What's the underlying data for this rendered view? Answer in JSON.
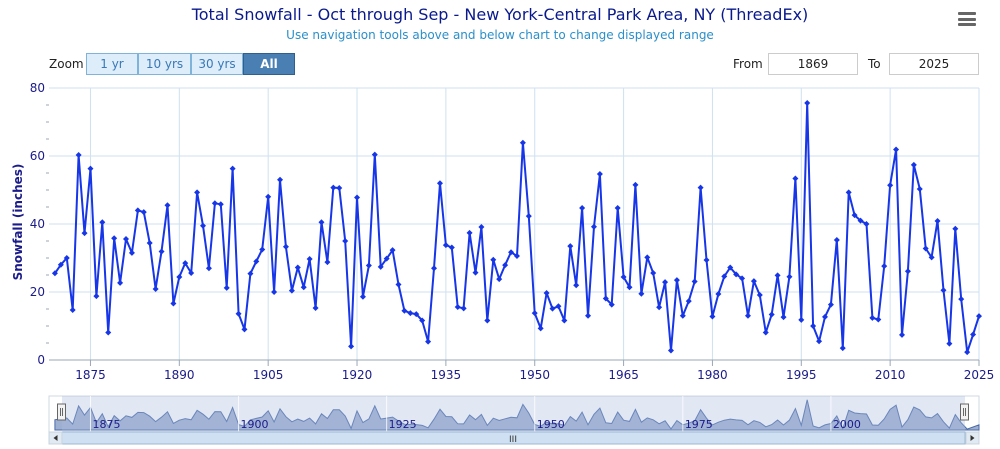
{
  "header": {
    "title": "Total Snowfall - Oct through Sep - New York-Central Park Area, NY (ThreadEx)",
    "subtitle": "Use navigation tools above and below chart to change displayed range",
    "menu_icon": "hamburger-menu-icon"
  },
  "zoom": {
    "label": "Zoom",
    "buttons": [
      "1 yr",
      "10 yrs",
      "30 yrs",
      "All"
    ],
    "active": "All"
  },
  "range": {
    "from_label": "From",
    "from_value": "1869",
    "to_label": "To",
    "to_value": "2025"
  },
  "navigator": {
    "ticks": [
      "1875",
      "1900",
      "1925",
      "1950",
      "1975",
      "2000"
    ],
    "scroll_grip": "III"
  },
  "chart_data": {
    "type": "line",
    "title": "Total Snowfall - Oct through Sep - New York-Central Park Area, NY (ThreadEx)",
    "subtitle": "Use navigation tools above and below chart to change displayed range",
    "xlabel": "",
    "ylabel": "Snowfall (inches)",
    "xlim": [
      1868,
      2025
    ],
    "ylim": [
      0,
      80
    ],
    "x_ticks": [
      1875,
      1890,
      1905,
      1920,
      1935,
      1950,
      1965,
      1980,
      1995,
      2010,
      2025
    ],
    "y_ticks": [
      0,
      20,
      40,
      60,
      80
    ],
    "grid": true,
    "color": "#1736e8",
    "x": [
      1869,
      1870,
      1871,
      1872,
      1873,
      1874,
      1875,
      1876,
      1877,
      1878,
      1879,
      1880,
      1881,
      1882,
      1883,
      1884,
      1885,
      1886,
      1887,
      1888,
      1889,
      1890,
      1891,
      1892,
      1893,
      1894,
      1895,
      1896,
      1897,
      1898,
      1899,
      1900,
      1901,
      1902,
      1903,
      1904,
      1905,
      1906,
      1907,
      1908,
      1909,
      1910,
      1911,
      1912,
      1913,
      1914,
      1915,
      1916,
      1917,
      1918,
      1919,
      1920,
      1921,
      1922,
      1923,
      1924,
      1925,
      1926,
      1927,
      1928,
      1929,
      1930,
      1931,
      1932,
      1933,
      1934,
      1935,
      1936,
      1937,
      1938,
      1939,
      1940,
      1941,
      1942,
      1943,
      1944,
      1945,
      1946,
      1947,
      1948,
      1949,
      1950,
      1951,
      1952,
      1953,
      1954,
      1955,
      1956,
      1957,
      1958,
      1959,
      1960,
      1961,
      1962,
      1963,
      1964,
      1965,
      1966,
      1967,
      1968,
      1969,
      1970,
      1971,
      1972,
      1973,
      1974,
      1975,
      1976,
      1977,
      1978,
      1979,
      1980,
      1981,
      1982,
      1983,
      1984,
      1985,
      1986,
      1987,
      1988,
      1989,
      1990,
      1991,
      1992,
      1993,
      1994,
      1995,
      1996,
      1997,
      1998,
      1999,
      2000,
      2001,
      2002,
      2003,
      2004,
      2005,
      2006,
      2007,
      2008,
      2009,
      2010,
      2011,
      2012,
      2013,
      2014,
      2015,
      2016,
      2017,
      2018,
      2019,
      2020,
      2021,
      2022,
      2023,
      2024,
      2025
    ],
    "values": [
      25.5,
      28,
      30,
      14.7,
      60.3,
      37.3,
      56.3,
      18.8,
      40.5,
      8.1,
      35.8,
      22.7,
      35.6,
      31.5,
      44,
      43.5,
      34.4,
      20.9,
      31.9,
      45.5,
      16.6,
      24.4,
      28.5,
      25.6,
      49.3,
      39.5,
      27,
      46.1,
      45.8,
      21.2,
      56.3,
      13.6,
      9,
      25.4,
      29,
      32.5,
      48,
      20,
      53,
      33.3,
      20.4,
      27.2,
      21.4,
      29.7,
      15.3,
      40.5,
      28.8,
      50.7,
      50.6,
      35,
      4,
      47.8,
      18.6,
      27.8,
      60.4,
      27.4,
      29.8,
      32.3,
      22.2,
      14.5,
      13.8,
      13.5,
      11.6,
      5.4,
      27,
      52,
      33.8,
      33.1,
      15.6,
      15.2,
      37.4,
      25.7,
      39.1,
      11.6,
      29.5,
      23.8,
      27.9,
      31.7,
      30.6,
      63.9,
      42.3,
      13.8,
      9.3,
      19.7,
      15.1,
      15.8,
      11.6,
      33.5,
      22,
      44.7,
      13,
      39.2,
      54.7,
      18.1,
      16.3,
      44.7,
      24.4,
      21.4,
      51.5,
      19.5,
      30.2,
      25.6,
      15.5,
      22.9,
      2.8,
      23.5,
      13,
      17.3,
      23.1,
      50.7,
      29.4,
      12.8,
      19.4,
      24.6,
      27.2,
      25.2,
      24,
      13,
      23.2,
      19.1,
      8.1,
      13.4,
      24.9,
      12.6,
      24.5,
      53.4,
      11.8,
      75.6,
      10,
      5.5,
      12.7,
      16.3,
      35.3,
      3.5,
      49.3,
      42.6,
      41,
      40,
      12.4,
      11.9,
      27.6,
      51.4,
      61.9,
      7.4,
      26.1,
      57.4,
      50.3,
      32.8,
      30.2,
      40.9,
      20.5,
      4.8,
      38.6,
      17.9,
      2.3,
      7.5,
      12.9
    ]
  }
}
